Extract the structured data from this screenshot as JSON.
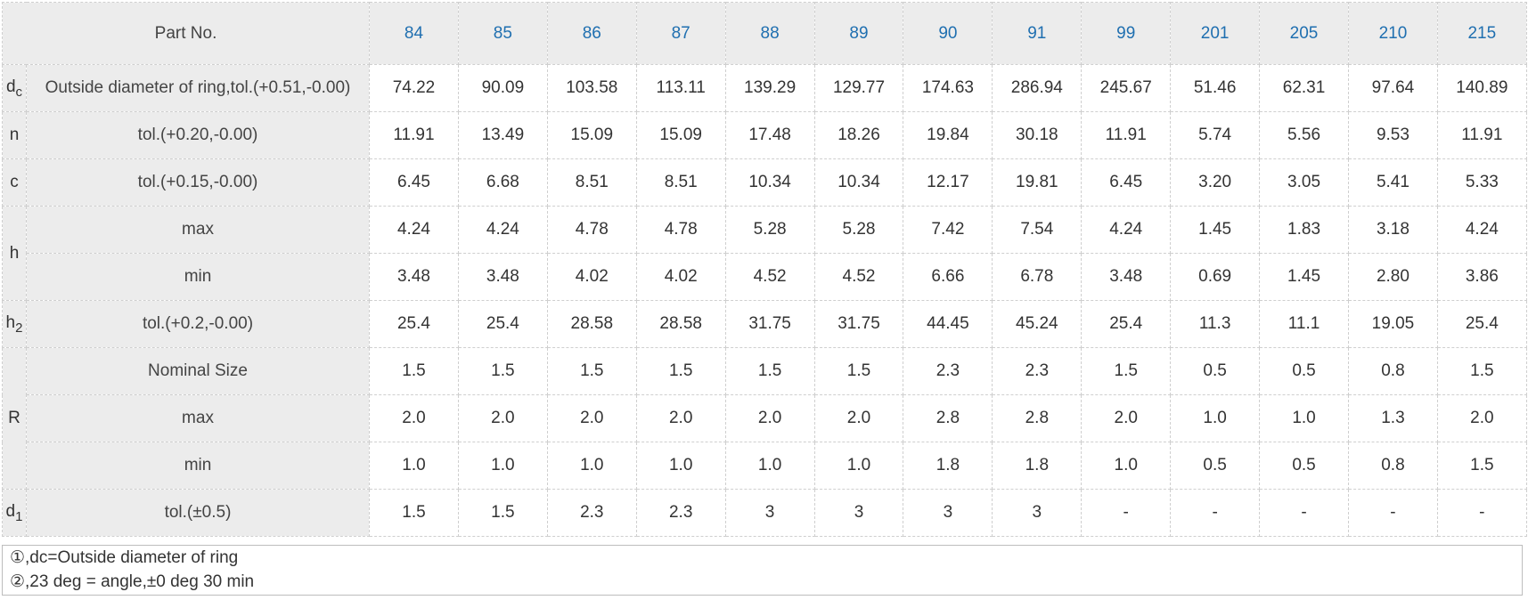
{
  "table": {
    "partno_label": "Part No.",
    "part_numbers": [
      "84",
      "85",
      "86",
      "87",
      "88",
      "89",
      "90",
      "91",
      "99",
      "201",
      "205",
      "210",
      "215"
    ],
    "symbols": {
      "dc": {
        "main": "d",
        "sub": "c"
      },
      "n": {
        "main": "n"
      },
      "c": {
        "main": "c"
      },
      "h": {
        "main": "h"
      },
      "h2": {
        "main": "h",
        "sub": "2"
      },
      "R": {
        "main": "R"
      },
      "d1": {
        "main": "d",
        "sub": "1"
      }
    },
    "rows": [
      {
        "label": "Outside diameter of ring,tol.(+0.51,-0.00)",
        "values": [
          "74.22",
          "90.09",
          "103.58",
          "113.11",
          "139.29",
          "129.77",
          "174.63",
          "286.94",
          "245.67",
          "51.46",
          "62.31",
          "97.64",
          "140.89"
        ]
      },
      {
        "label": "tol.(+0.20,-0.00)",
        "values": [
          "11.91",
          "13.49",
          "15.09",
          "15.09",
          "17.48",
          "18.26",
          "19.84",
          "30.18",
          "11.91",
          "5.74",
          "5.56",
          "9.53",
          "11.91"
        ]
      },
      {
        "label": "tol.(+0.15,-0.00)",
        "values": [
          "6.45",
          "6.68",
          "8.51",
          "8.51",
          "10.34",
          "10.34",
          "12.17",
          "19.81",
          "6.45",
          "3.20",
          "3.05",
          "5.41",
          "5.33"
        ]
      },
      {
        "label": "max",
        "values": [
          "4.24",
          "4.24",
          "4.78",
          "4.78",
          "5.28",
          "5.28",
          "7.42",
          "7.54",
          "4.24",
          "1.45",
          "1.83",
          "3.18",
          "4.24"
        ]
      },
      {
        "label": "min",
        "values": [
          "3.48",
          "3.48",
          "4.02",
          "4.02",
          "4.52",
          "4.52",
          "6.66",
          "6.78",
          "3.48",
          "0.69",
          "1.45",
          "2.80",
          "3.86"
        ]
      },
      {
        "label": "tol.(+0.2,-0.00)",
        "values": [
          "25.4",
          "25.4",
          "28.58",
          "28.58",
          "31.75",
          "31.75",
          "44.45",
          "45.24",
          "25.4",
          "11.3",
          "11.1",
          "19.05",
          "25.4"
        ]
      },
      {
        "label": "Nominal Size",
        "values": [
          "1.5",
          "1.5",
          "1.5",
          "1.5",
          "1.5",
          "1.5",
          "2.3",
          "2.3",
          "1.5",
          "0.5",
          "0.5",
          "0.8",
          "1.5"
        ]
      },
      {
        "label": "max",
        "values": [
          "2.0",
          "2.0",
          "2.0",
          "2.0",
          "2.0",
          "2.0",
          "2.8",
          "2.8",
          "2.0",
          "1.0",
          "1.0",
          "1.3",
          "2.0"
        ]
      },
      {
        "label": "min",
        "values": [
          "1.0",
          "1.0",
          "1.0",
          "1.0",
          "1.0",
          "1.0",
          "1.8",
          "1.8",
          "1.0",
          "0.5",
          "0.5",
          "0.8",
          "1.5"
        ]
      },
      {
        "label": "tol.(±0.5)",
        "values": [
          "1.5",
          "1.5",
          "2.3",
          "2.3",
          "3",
          "3",
          "3",
          "3",
          "-",
          "-",
          "-",
          "-",
          "-"
        ]
      }
    ]
  },
  "notes": [
    "①,dc=Outside diameter of ring",
    "②,23 deg = angle,±0 deg 30 min"
  ]
}
